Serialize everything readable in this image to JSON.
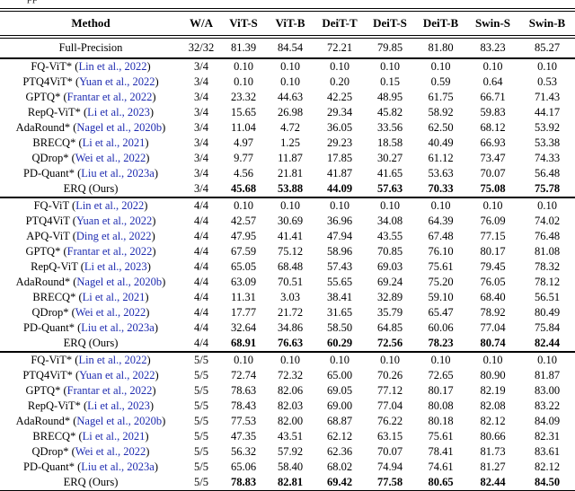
{
  "caption_fragment": "pp",
  "colors": {
    "citation_link": "#1e2bb0",
    "rule": "#000000",
    "background": "#ffffff"
  },
  "table": {
    "columns": [
      "Method",
      "W/A",
      "ViT-S",
      "ViT-B",
      "DeiT-T",
      "DeiT-S",
      "DeiT-B",
      "Swin-S",
      "Swin-B"
    ],
    "full_precision": {
      "method": "Full-Precision",
      "wa": "32/32",
      "values": [
        "81.39",
        "84.54",
        "72.21",
        "79.85",
        "81.80",
        "83.23",
        "85.27"
      ]
    },
    "sections": [
      {
        "wa": "3/4",
        "rows": [
          {
            "method": "FQ-ViT*",
            "cite": "Lin et al., 2022",
            "bold": false,
            "values": [
              "0.10",
              "0.10",
              "0.10",
              "0.10",
              "0.10",
              "0.10",
              "0.10"
            ]
          },
          {
            "method": "PTQ4ViT*",
            "cite": "Yuan et al., 2022",
            "bold": false,
            "values": [
              "0.10",
              "0.10",
              "0.20",
              "0.15",
              "0.59",
              "0.64",
              "0.53"
            ]
          },
          {
            "method": "GPTQ*",
            "cite": "Frantar et al., 2022",
            "bold": false,
            "values": [
              "23.32",
              "44.63",
              "42.25",
              "48.95",
              "61.75",
              "66.71",
              "71.43"
            ]
          },
          {
            "method": "RepQ-ViT*",
            "cite": "Li et al., 2023",
            "bold": false,
            "values": [
              "15.65",
              "26.98",
              "29.34",
              "45.82",
              "58.92",
              "59.83",
              "44.17"
            ]
          },
          {
            "method": "AdaRound*",
            "cite": "Nagel et al., 2020b",
            "bold": false,
            "values": [
              "11.04",
              "4.72",
              "36.05",
              "33.56",
              "62.50",
              "68.12",
              "53.92"
            ]
          },
          {
            "method": "BRECQ*",
            "cite": "Li et al., 2021",
            "bold": false,
            "values": [
              "4.97",
              "1.25",
              "29.23",
              "18.58",
              "40.49",
              "66.93",
              "53.38"
            ]
          },
          {
            "method": "QDrop*",
            "cite": "Wei et al., 2022",
            "bold": false,
            "values": [
              "9.77",
              "11.87",
              "17.85",
              "30.27",
              "61.12",
              "73.47",
              "74.33"
            ]
          },
          {
            "method": "PD-Quant*",
            "cite": "Liu et al., 2023a",
            "bold": false,
            "values": [
              "4.56",
              "21.81",
              "41.87",
              "41.65",
              "53.63",
              "70.07",
              "56.48"
            ]
          },
          {
            "method": "ERQ (Ours)",
            "cite": "",
            "bold": true,
            "values": [
              "45.68",
              "53.88",
              "44.09",
              "57.63",
              "70.33",
              "75.08",
              "75.78"
            ]
          }
        ]
      },
      {
        "wa": "4/4",
        "rows": [
          {
            "method": "FQ-ViT",
            "cite": "Lin et al., 2022",
            "bold": false,
            "values": [
              "0.10",
              "0.10",
              "0.10",
              "0.10",
              "0.10",
              "0.10",
              "0.10"
            ]
          },
          {
            "method": "PTQ4ViT",
            "cite": "Yuan et al., 2022",
            "bold": false,
            "values": [
              "42.57",
              "30.69",
              "36.96",
              "34.08",
              "64.39",
              "76.09",
              "74.02"
            ]
          },
          {
            "method": "APQ-ViT",
            "cite": "Ding et al., 2022",
            "bold": false,
            "values": [
              "47.95",
              "41.41",
              "47.94",
              "43.55",
              "67.48",
              "77.15",
              "76.48"
            ]
          },
          {
            "method": "GPTQ*",
            "cite": "Frantar et al., 2022",
            "bold": false,
            "values": [
              "67.59",
              "75.12",
              "58.96",
              "70.85",
              "76.10",
              "80.17",
              "81.08"
            ]
          },
          {
            "method": "RepQ-ViT",
            "cite": "Li et al., 2023",
            "bold": false,
            "values": [
              "65.05",
              "68.48",
              "57.43",
              "69.03",
              "75.61",
              "79.45",
              "78.32"
            ]
          },
          {
            "method": "AdaRound*",
            "cite": "Nagel et al., 2020b",
            "bold": false,
            "values": [
              "63.09",
              "70.51",
              "55.65",
              "69.24",
              "75.20",
              "76.05",
              "78.12"
            ]
          },
          {
            "method": "BRECQ*",
            "cite": "Li et al., 2021",
            "bold": false,
            "values": [
              "11.31",
              "3.03",
              "38.41",
              "32.89",
              "59.10",
              "68.40",
              "56.51"
            ]
          },
          {
            "method": "QDrop*",
            "cite": "Wei et al., 2022",
            "bold": false,
            "values": [
              "17.77",
              "21.72",
              "31.65",
              "35.79",
              "65.47",
              "78.92",
              "80.49"
            ]
          },
          {
            "method": "PD-Quant*",
            "cite": "Liu et al., 2023a",
            "bold": false,
            "values": [
              "32.64",
              "34.86",
              "58.50",
              "64.85",
              "60.06",
              "77.04",
              "75.84"
            ]
          },
          {
            "method": "ERQ (Ours)",
            "cite": "",
            "bold": true,
            "values": [
              "68.91",
              "76.63",
              "60.29",
              "72.56",
              "78.23",
              "80.74",
              "82.44"
            ]
          }
        ]
      },
      {
        "wa": "5/5",
        "rows": [
          {
            "method": "FQ-ViT*",
            "cite": "Lin et al., 2022",
            "bold": false,
            "values": [
              "0.10",
              "0.10",
              "0.10",
              "0.10",
              "0.10",
              "0.10",
              "0.10"
            ]
          },
          {
            "method": "PTQ4ViT*",
            "cite": "Yuan et al., 2022",
            "bold": false,
            "values": [
              "72.74",
              "72.32",
              "65.00",
              "70.26",
              "72.65",
              "80.90",
              "81.87"
            ]
          },
          {
            "method": "GPTQ*",
            "cite": "Frantar et al., 2022",
            "bold": false,
            "values": [
              "78.63",
              "82.06",
              "69.05",
              "77.12",
              "80.17",
              "82.19",
              "83.00"
            ]
          },
          {
            "method": "RepQ-ViT*",
            "cite": "Li et al., 2023",
            "bold": false,
            "values": [
              "78.43",
              "82.03",
              "69.00",
              "77.04",
              "80.08",
              "82.08",
              "83.22"
            ]
          },
          {
            "method": "AdaRound*",
            "cite": "Nagel et al., 2020b",
            "bold": false,
            "values": [
              "77.53",
              "82.00",
              "68.87",
              "76.22",
              "80.18",
              "82.12",
              "84.09"
            ]
          },
          {
            "method": "BRECQ*",
            "cite": "Li et al., 2021",
            "bold": false,
            "values": [
              "47.35",
              "43.51",
              "62.12",
              "63.15",
              "75.61",
              "80.66",
              "82.31"
            ]
          },
          {
            "method": "QDrop*",
            "cite": "Wei et al., 2022",
            "bold": false,
            "values": [
              "56.32",
              "57.92",
              "62.36",
              "70.07",
              "78.41",
              "81.73",
              "83.61"
            ]
          },
          {
            "method": "PD-Quant*",
            "cite": "Liu et al., 2023a",
            "bold": false,
            "values": [
              "65.06",
              "58.40",
              "68.02",
              "74.94",
              "74.61",
              "81.27",
              "82.12"
            ]
          },
          {
            "method": "ERQ (Ours)",
            "cite": "",
            "bold": true,
            "values": [
              "78.83",
              "82.81",
              "69.42",
              "77.58",
              "80.65",
              "82.44",
              "84.50"
            ]
          }
        ]
      }
    ]
  }
}
